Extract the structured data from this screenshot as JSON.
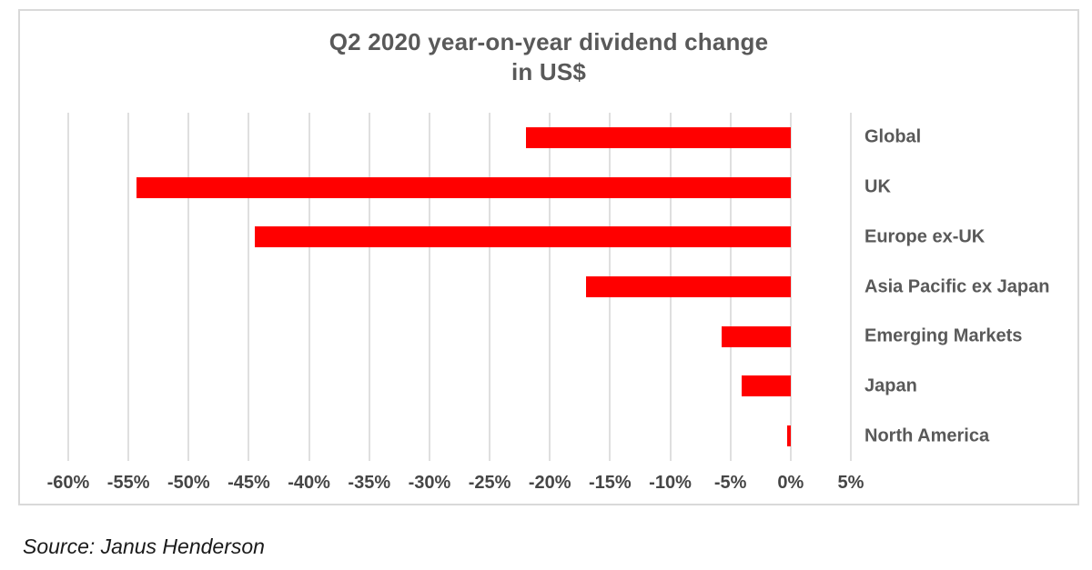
{
  "chart_data": {
    "type": "bar",
    "orientation": "horizontal",
    "title": "Q2 2020 year-on-year dividend change\nin US$",
    "categories": [
      "Global",
      "UK",
      "Europe ex-UK",
      "Asia Pacific ex Japan",
      "Emerging Markets",
      "Japan",
      "North America"
    ],
    "values": [
      -22.0,
      -54.3,
      -44.5,
      -17.0,
      -5.7,
      -4.1,
      -0.3
    ],
    "unit": "%",
    "xlim": [
      -60,
      5
    ],
    "x_ticks": [
      -60,
      -55,
      -50,
      -45,
      -40,
      -35,
      -30,
      -25,
      -20,
      -15,
      -10,
      -5,
      0,
      5
    ],
    "x_tick_labels": [
      "-60%",
      "-55%",
      "-50%",
      "-45%",
      "-40%",
      "-35%",
      "-30%",
      "-25%",
      "-20%",
      "-15%",
      "-10%",
      "-5%",
      "0%",
      "5%"
    ],
    "grid": true,
    "legend": "none",
    "bar_anchor": 0
  },
  "source": {
    "label": "Source: Janus Henderson"
  },
  "colors": {
    "bar": "#ff0000",
    "title_text": "#595959",
    "category_text": "#595959",
    "tick_text": "#464646",
    "grid": "#dfdfdf",
    "frame_border": "#d9d9d9",
    "background": "#ffffff"
  }
}
